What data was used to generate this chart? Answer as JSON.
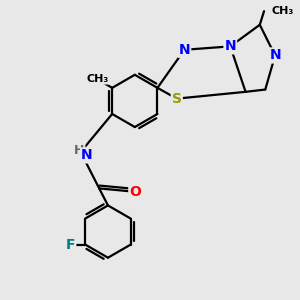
{
  "background_color": "#e8e8e8",
  "line_color": "#000000",
  "line_width": 1.6,
  "atom_colors": {
    "N": "#0000FF",
    "S": "#999900",
    "O": "#FF0000",
    "F": "#008080",
    "H": "#666666",
    "C": "#000000"
  },
  "font_size": 10,
  "bold_font": true,
  "fig_size": [
    3.0,
    3.0
  ],
  "dpi": 100,
  "xlim": [
    0,
    10
  ],
  "ylim": [
    0,
    10
  ]
}
